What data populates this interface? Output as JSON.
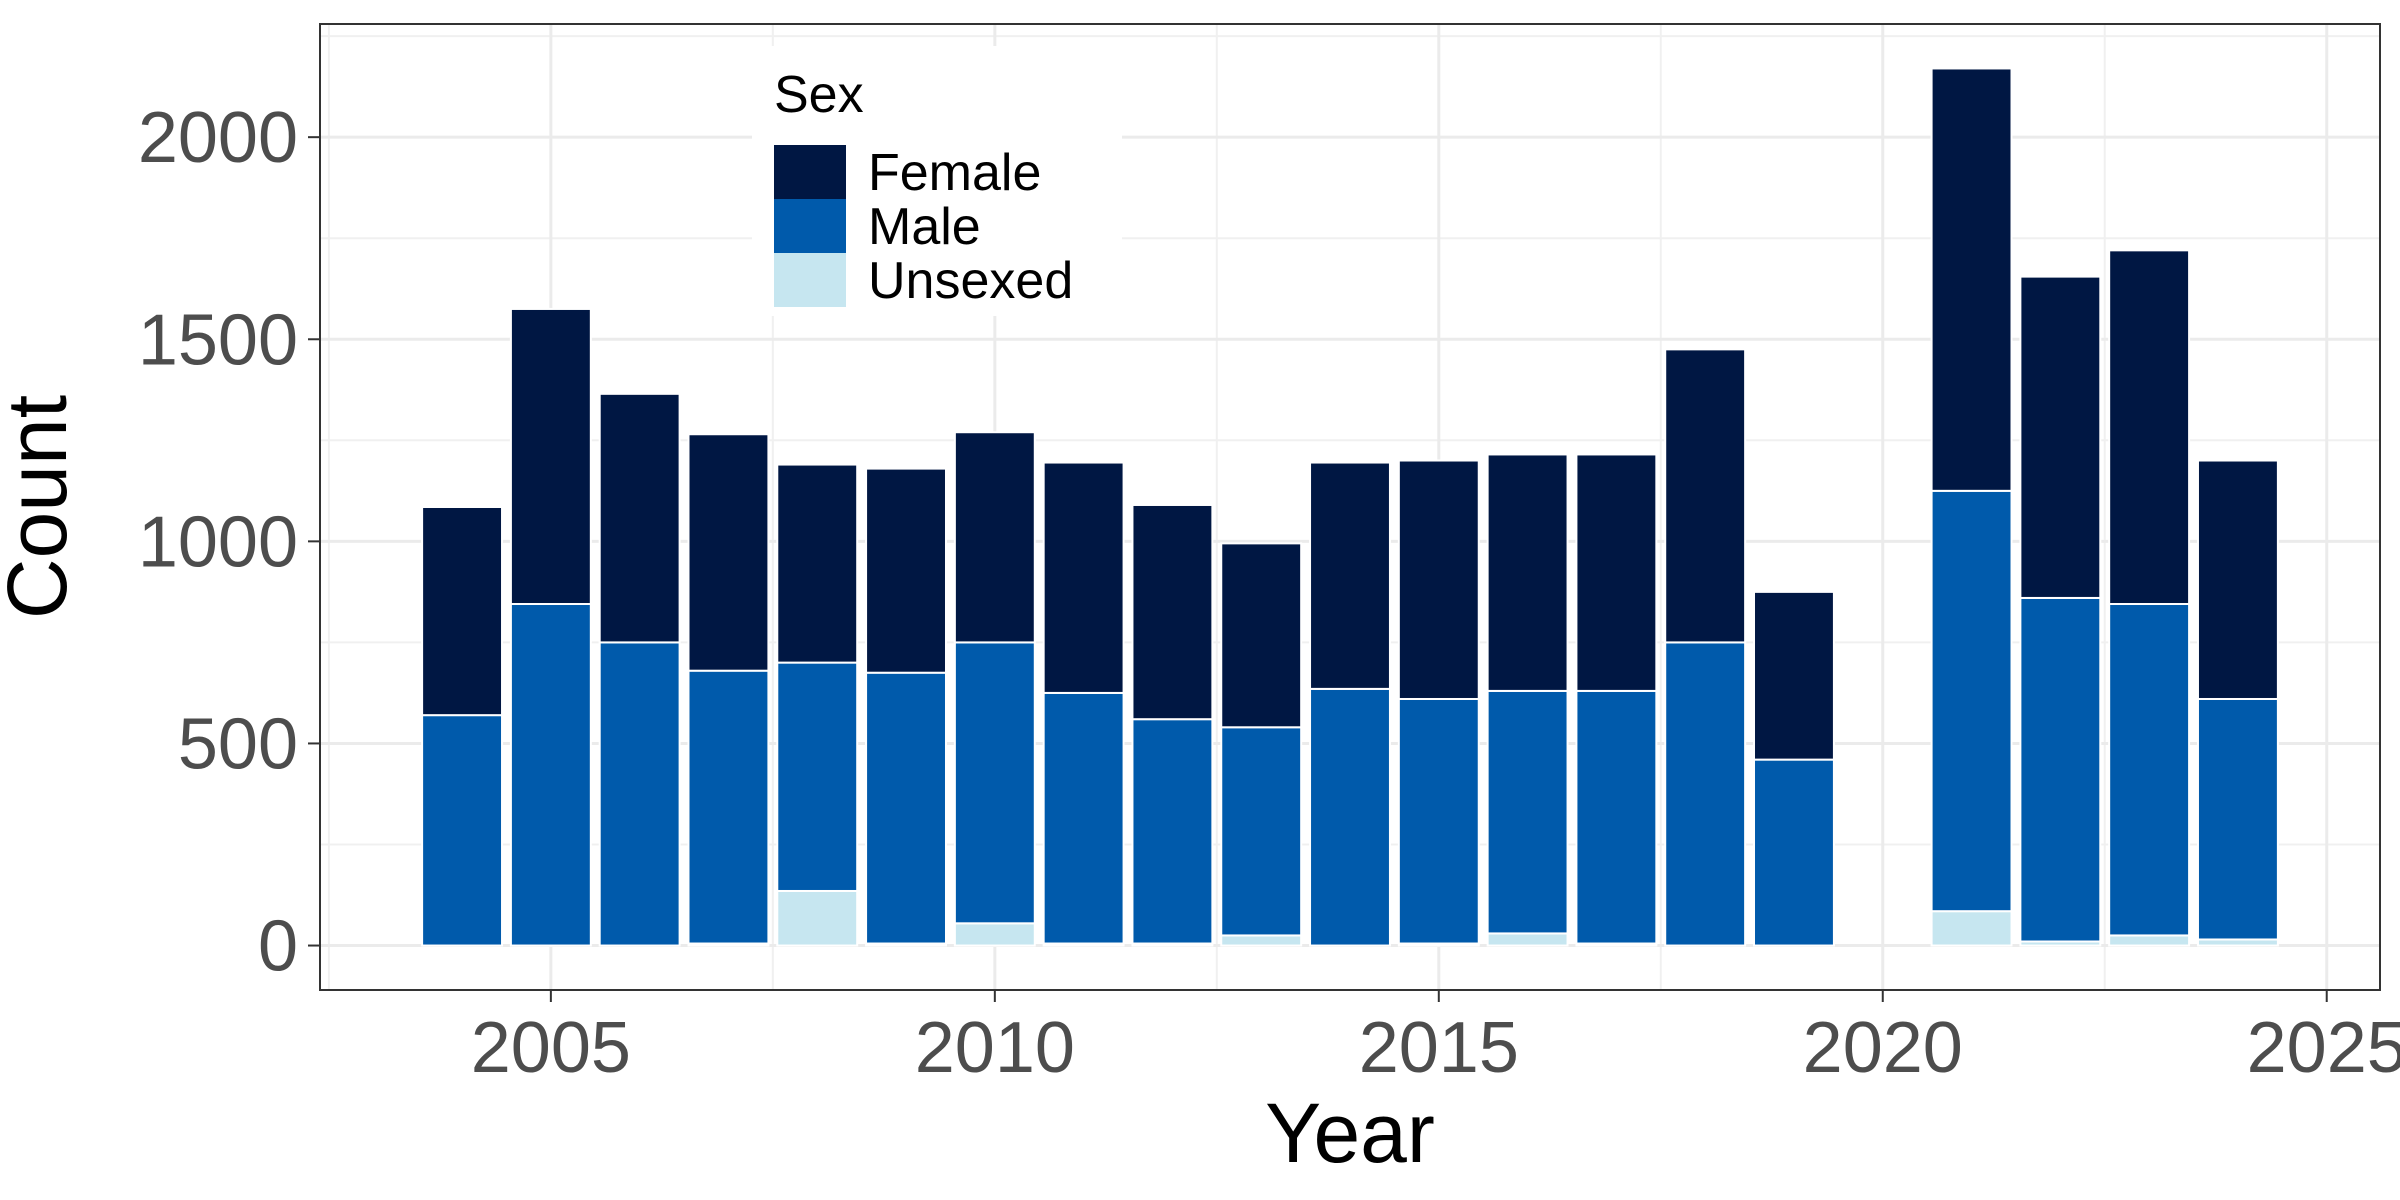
{
  "chart_data": {
    "type": "bar",
    "stacked": true,
    "xlabel": "Year",
    "ylabel": "Count",
    "x": [
      2004,
      2005,
      2006,
      2007,
      2008,
      2009,
      2010,
      2011,
      2012,
      2013,
      2014,
      2015,
      2016,
      2017,
      2018,
      2019,
      2021,
      2022,
      2023,
      2024
    ],
    "series": [
      {
        "name": "Unsexed",
        "color": "#c6e6f0",
        "values": [
          0,
          0,
          0,
          5,
          135,
          5,
          55,
          5,
          5,
          25,
          0,
          5,
          30,
          5,
          0,
          0,
          85,
          10,
          25,
          15
        ]
      },
      {
        "name": "Male",
        "color": "#005aab",
        "values": [
          570,
          845,
          750,
          675,
          565,
          670,
          695,
          620,
          555,
          515,
          635,
          605,
          600,
          625,
          750,
          460,
          1040,
          850,
          820,
          595
        ]
      },
      {
        "name": "Female",
        "color": "#001743",
        "values": [
          515,
          730,
          615,
          585,
          490,
          505,
          520,
          570,
          530,
          455,
          560,
          590,
          585,
          585,
          725,
          415,
          1045,
          795,
          875,
          590
        ]
      }
    ],
    "xlim": [
      2002.4,
      2025.6
    ],
    "ylim": [
      -110,
      2280
    ],
    "xticks": [
      "2005",
      "2010",
      "2015",
      "2020",
      "2025"
    ],
    "yticks": [
      "0",
      "500",
      "1000",
      "1500",
      "2000"
    ],
    "grid": true,
    "legend": {
      "title": "Sex",
      "placement": "top-left",
      "entries": [
        "Female",
        "Male",
        "Unsexed"
      ]
    }
  }
}
